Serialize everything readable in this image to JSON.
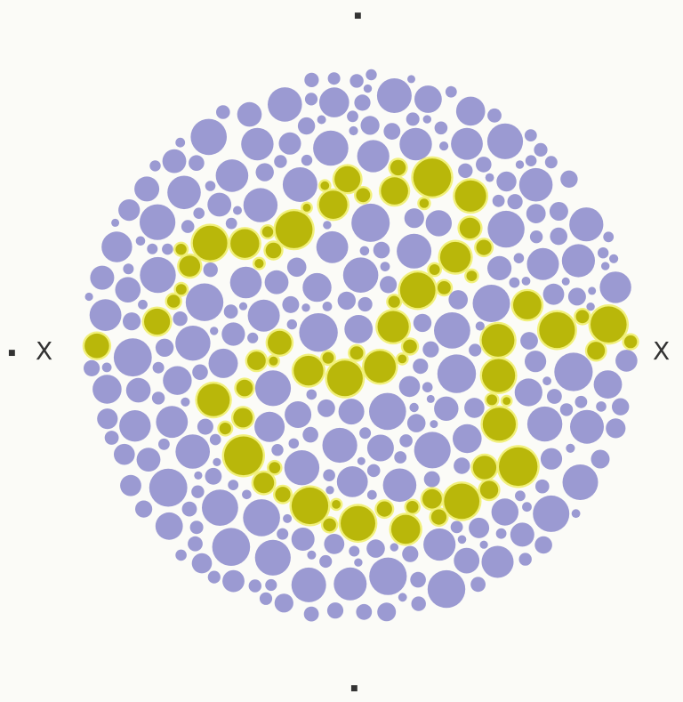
{
  "plate": {
    "background_color": "#fbfbf7",
    "dot_color": "#9b9ad2",
    "figure_color": "#b9b70a",
    "figure_glow_color": "#f1f07a"
  },
  "marks": {
    "left": "X",
    "right": "X"
  }
}
